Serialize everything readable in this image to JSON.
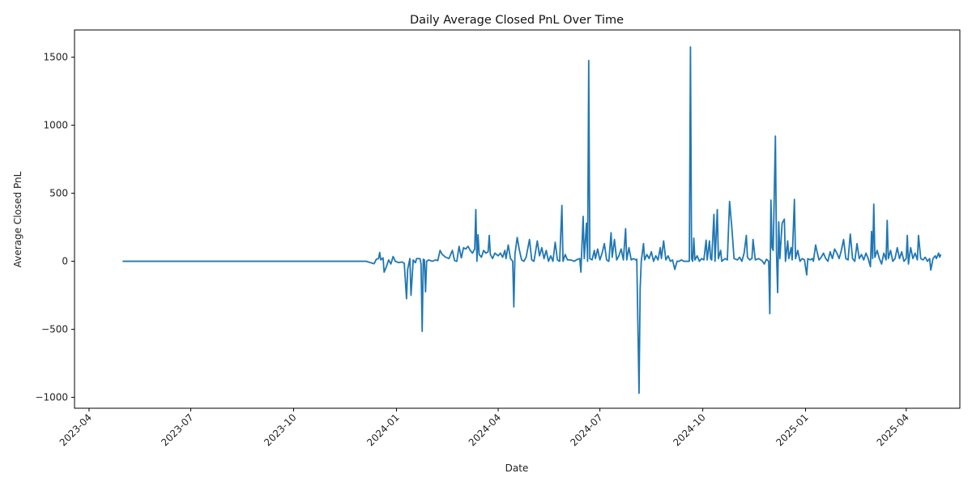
{
  "chart_data": {
    "type": "line",
    "title": "Daily Average Closed PnL Over Time",
    "xlabel": "Date",
    "ylabel": "Average Closed PnL",
    "ylim": [
      -1080,
      1700
    ],
    "xlim": [
      "2023-03-19",
      "2025-05-19"
    ],
    "grid": false,
    "color": "#1f77b4",
    "y_ticks": [
      -1000,
      -500,
      0,
      500,
      1000,
      1500
    ],
    "y_tick_labels": [
      "−1000",
      "−500",
      "0",
      "500",
      "1000",
      "1500"
    ],
    "x_ticks": [
      "2023-04-01",
      "2023-07-01",
      "2023-10-01",
      "2024-01-01",
      "2024-04-01",
      "2024-07-01",
      "2024-10-01",
      "2025-01-01",
      "2025-04-01"
    ],
    "x_tick_labels": [
      "2023-04",
      "2023-07",
      "2023-10",
      "2024-01",
      "2024-04",
      "2024-07",
      "2024-10",
      "2025-01",
      "2025-04"
    ],
    "series": [
      {
        "points": [
          [
            "2023-05-01",
            0
          ],
          [
            "2023-08-01",
            0
          ],
          [
            "2023-11-01",
            0
          ],
          [
            "2023-12-05",
            0
          ],
          [
            "2023-12-12",
            -18
          ],
          [
            "2023-12-14",
            15
          ],
          [
            "2023-12-16",
            20
          ],
          [
            "2023-12-17",
            65
          ],
          [
            "2023-12-18",
            10
          ],
          [
            "2023-12-20",
            25
          ],
          [
            "2023-12-21",
            -80
          ],
          [
            "2023-12-23",
            -40
          ],
          [
            "2023-12-25",
            10
          ],
          [
            "2023-12-27",
            -20
          ],
          [
            "2023-12-29",
            35
          ],
          [
            "2023-12-31",
            0
          ],
          [
            "2024-01-03",
            -10
          ],
          [
            "2024-01-06",
            -5
          ],
          [
            "2024-01-08",
            -15
          ],
          [
            "2024-01-10",
            -275
          ],
          [
            "2024-01-11",
            -60
          ],
          [
            "2024-01-13",
            20
          ],
          [
            "2024-01-14",
            -250
          ],
          [
            "2024-01-16",
            10
          ],
          [
            "2024-01-18",
            -10
          ],
          [
            "2024-01-19",
            20
          ],
          [
            "2024-01-22",
            20
          ],
          [
            "2024-01-23",
            -20
          ],
          [
            "2024-01-24",
            -515
          ],
          [
            "2024-01-25",
            15
          ],
          [
            "2024-01-26",
            10
          ],
          [
            "2024-01-27",
            -225
          ],
          [
            "2024-01-28",
            0
          ],
          [
            "2024-01-30",
            10
          ],
          [
            "2024-02-02",
            0
          ],
          [
            "2024-02-05",
            10
          ],
          [
            "2024-02-07",
            5
          ],
          [
            "2024-02-09",
            80
          ],
          [
            "2024-02-11",
            50
          ],
          [
            "2024-02-14",
            30
          ],
          [
            "2024-02-17",
            20
          ],
          [
            "2024-02-20",
            80
          ],
          [
            "2024-02-22",
            5
          ],
          [
            "2024-02-24",
            0
          ],
          [
            "2024-02-26",
            110
          ],
          [
            "2024-02-28",
            25
          ],
          [
            "2024-03-01",
            100
          ],
          [
            "2024-03-03",
            90
          ],
          [
            "2024-03-05",
            110
          ],
          [
            "2024-03-07",
            80
          ],
          [
            "2024-03-09",
            60
          ],
          [
            "2024-03-11",
            90
          ],
          [
            "2024-03-12",
            380
          ],
          [
            "2024-03-13",
            0
          ],
          [
            "2024-03-14",
            195
          ],
          [
            "2024-03-15",
            50
          ],
          [
            "2024-03-17",
            30
          ],
          [
            "2024-03-19",
            80
          ],
          [
            "2024-03-21",
            60
          ],
          [
            "2024-03-23",
            70
          ],
          [
            "2024-03-24",
            190
          ],
          [
            "2024-03-25",
            50
          ],
          [
            "2024-03-27",
            20
          ],
          [
            "2024-03-29",
            60
          ],
          [
            "2024-04-01",
            40
          ],
          [
            "2024-04-03",
            60
          ],
          [
            "2024-04-05",
            30
          ],
          [
            "2024-04-07",
            80
          ],
          [
            "2024-04-08",
            20
          ],
          [
            "2024-04-10",
            120
          ],
          [
            "2024-04-12",
            20
          ],
          [
            "2024-04-14",
            0
          ],
          [
            "2024-04-15",
            -335
          ],
          [
            "2024-04-16",
            50
          ],
          [
            "2024-04-18",
            175
          ],
          [
            "2024-04-20",
            80
          ],
          [
            "2024-04-22",
            10
          ],
          [
            "2024-04-24",
            0
          ],
          [
            "2024-04-26",
            30
          ],
          [
            "2024-04-29",
            160
          ],
          [
            "2024-05-01",
            10
          ],
          [
            "2024-05-03",
            0
          ],
          [
            "2024-05-06",
            150
          ],
          [
            "2024-05-08",
            40
          ],
          [
            "2024-05-10",
            100
          ],
          [
            "2024-05-12",
            20
          ],
          [
            "2024-05-14",
            80
          ],
          [
            "2024-05-16",
            0
          ],
          [
            "2024-05-18",
            40
          ],
          [
            "2024-05-20",
            0
          ],
          [
            "2024-05-22",
            140
          ],
          [
            "2024-05-24",
            10
          ],
          [
            "2024-05-26",
            0
          ],
          [
            "2024-05-28",
            410
          ],
          [
            "2024-05-29",
            0
          ],
          [
            "2024-05-31",
            50
          ],
          [
            "2024-06-02",
            10
          ],
          [
            "2024-06-05",
            10
          ],
          [
            "2024-06-08",
            0
          ],
          [
            "2024-06-11",
            15
          ],
          [
            "2024-06-13",
            20
          ],
          [
            "2024-06-14",
            -80
          ],
          [
            "2024-06-16",
            330
          ],
          [
            "2024-06-17",
            20
          ],
          [
            "2024-06-19",
            280
          ],
          [
            "2024-06-20",
            0
          ],
          [
            "2024-06-21",
            1475
          ],
          [
            "2024-06-22",
            20
          ],
          [
            "2024-06-24",
            10
          ],
          [
            "2024-06-26",
            80
          ],
          [
            "2024-06-27",
            20
          ],
          [
            "2024-06-29",
            90
          ],
          [
            "2024-07-01",
            10
          ],
          [
            "2024-07-03",
            60
          ],
          [
            "2024-07-05",
            130
          ],
          [
            "2024-07-07",
            10
          ],
          [
            "2024-07-09",
            0
          ],
          [
            "2024-07-11",
            210
          ],
          [
            "2024-07-12",
            30
          ],
          [
            "2024-07-14",
            160
          ],
          [
            "2024-07-16",
            10
          ],
          [
            "2024-07-18",
            40
          ],
          [
            "2024-07-20",
            90
          ],
          [
            "2024-07-22",
            10
          ],
          [
            "2024-07-24",
            240
          ],
          [
            "2024-07-25",
            10
          ],
          [
            "2024-07-27",
            100
          ],
          [
            "2024-07-29",
            10
          ],
          [
            "2024-07-31",
            20
          ],
          [
            "2024-08-02",
            10
          ],
          [
            "2024-08-03",
            15
          ],
          [
            "2024-08-05",
            -970
          ],
          [
            "2024-08-06",
            -200
          ],
          [
            "2024-08-07",
            0
          ],
          [
            "2024-08-09",
            130
          ],
          [
            "2024-08-10",
            10
          ],
          [
            "2024-08-12",
            50
          ],
          [
            "2024-08-14",
            20
          ],
          [
            "2024-08-16",
            70
          ],
          [
            "2024-08-18",
            0
          ],
          [
            "2024-08-20",
            40
          ],
          [
            "2024-08-22",
            10
          ],
          [
            "2024-08-24",
            100
          ],
          [
            "2024-08-25",
            20
          ],
          [
            "2024-08-27",
            150
          ],
          [
            "2024-08-29",
            10
          ],
          [
            "2024-08-31",
            40
          ],
          [
            "2024-09-02",
            0
          ],
          [
            "2024-09-04",
            10
          ],
          [
            "2024-09-06",
            -60
          ],
          [
            "2024-09-08",
            0
          ],
          [
            "2024-09-10",
            0
          ],
          [
            "2024-09-12",
            10
          ],
          [
            "2024-09-14",
            0
          ],
          [
            "2024-09-16",
            0
          ],
          [
            "2024-09-19",
            0
          ],
          [
            "2024-09-20",
            1575
          ],
          [
            "2024-09-21",
            20
          ],
          [
            "2024-09-22",
            0
          ],
          [
            "2024-09-23",
            170
          ],
          [
            "2024-09-24",
            10
          ],
          [
            "2024-09-26",
            40
          ],
          [
            "2024-09-28",
            0
          ],
          [
            "2024-09-30",
            20
          ],
          [
            "2024-10-02",
            10
          ],
          [
            "2024-10-04",
            155
          ],
          [
            "2024-10-05",
            10
          ],
          [
            "2024-10-07",
            150
          ],
          [
            "2024-10-08",
            20
          ],
          [
            "2024-10-09",
            10
          ],
          [
            "2024-10-11",
            345
          ],
          [
            "2024-10-12",
            0
          ],
          [
            "2024-10-14",
            380
          ],
          [
            "2024-10-15",
            20
          ],
          [
            "2024-10-17",
            80
          ],
          [
            "2024-10-18",
            0
          ],
          [
            "2024-10-21",
            20
          ],
          [
            "2024-10-23",
            10
          ],
          [
            "2024-10-25",
            440
          ],
          [
            "2024-10-27",
            250
          ],
          [
            "2024-10-29",
            20
          ],
          [
            "2024-11-01",
            10
          ],
          [
            "2024-11-03",
            30
          ],
          [
            "2024-11-05",
            0
          ],
          [
            "2024-11-07",
            60
          ],
          [
            "2024-11-09",
            190
          ],
          [
            "2024-11-10",
            30
          ],
          [
            "2024-11-12",
            10
          ],
          [
            "2024-11-14",
            20
          ],
          [
            "2024-11-15",
            160
          ],
          [
            "2024-11-17",
            10
          ],
          [
            "2024-11-20",
            20
          ],
          [
            "2024-11-23",
            5
          ],
          [
            "2024-11-25",
            -20
          ],
          [
            "2024-11-27",
            15
          ],
          [
            "2024-11-29",
            0
          ],
          [
            "2024-11-30",
            -385
          ],
          [
            "2024-12-01",
            450
          ],
          [
            "2024-12-02",
            100
          ],
          [
            "2024-12-03",
            80
          ],
          [
            "2024-12-05",
            920
          ],
          [
            "2024-12-06",
            60
          ],
          [
            "2024-12-07",
            -230
          ],
          [
            "2024-12-08",
            290
          ],
          [
            "2024-12-09",
            20
          ],
          [
            "2024-12-11",
            280
          ],
          [
            "2024-12-13",
            310
          ],
          [
            "2024-12-14",
            0
          ],
          [
            "2024-12-16",
            150
          ],
          [
            "2024-12-17",
            20
          ],
          [
            "2024-12-19",
            100
          ],
          [
            "2024-12-20",
            10
          ],
          [
            "2024-12-22",
            455
          ],
          [
            "2024-12-23",
            20
          ],
          [
            "2024-12-25",
            80
          ],
          [
            "2024-12-27",
            0
          ],
          [
            "2024-12-29",
            20
          ],
          [
            "2024-12-31",
            10
          ],
          [
            "2025-01-02",
            -100
          ],
          [
            "2025-01-03",
            20
          ],
          [
            "2025-01-05",
            10
          ],
          [
            "2025-01-07",
            20
          ],
          [
            "2025-01-08",
            0
          ],
          [
            "2025-01-10",
            120
          ],
          [
            "2025-01-11",
            80
          ],
          [
            "2025-01-13",
            10
          ],
          [
            "2025-01-15",
            30
          ],
          [
            "2025-01-17",
            60
          ],
          [
            "2025-01-19",
            20
          ],
          [
            "2025-01-21",
            0
          ],
          [
            "2025-01-23",
            70
          ],
          [
            "2025-01-25",
            20
          ],
          [
            "2025-01-27",
            90
          ],
          [
            "2025-01-29",
            60
          ],
          [
            "2025-01-31",
            20
          ],
          [
            "2025-02-02",
            80
          ],
          [
            "2025-02-04",
            160
          ],
          [
            "2025-02-06",
            20
          ],
          [
            "2025-02-08",
            10
          ],
          [
            "2025-02-10",
            200
          ],
          [
            "2025-02-12",
            20
          ],
          [
            "2025-02-14",
            0
          ],
          [
            "2025-02-16",
            130
          ],
          [
            "2025-02-18",
            20
          ],
          [
            "2025-02-20",
            50
          ],
          [
            "2025-02-22",
            10
          ],
          [
            "2025-02-24",
            60
          ],
          [
            "2025-02-26",
            20
          ],
          [
            "2025-02-28",
            -40
          ],
          [
            "2025-03-01",
            220
          ],
          [
            "2025-03-02",
            20
          ],
          [
            "2025-03-03",
            420
          ],
          [
            "2025-03-04",
            30
          ],
          [
            "2025-03-06",
            80
          ],
          [
            "2025-03-08",
            20
          ],
          [
            "2025-03-10",
            -20
          ],
          [
            "2025-03-12",
            60
          ],
          [
            "2025-03-14",
            10
          ],
          [
            "2025-03-15",
            300
          ],
          [
            "2025-03-16",
            20
          ],
          [
            "2025-03-18",
            80
          ],
          [
            "2025-03-20",
            0
          ],
          [
            "2025-03-22",
            20
          ],
          [
            "2025-03-24",
            100
          ],
          [
            "2025-03-26",
            20
          ],
          [
            "2025-03-28",
            70
          ],
          [
            "2025-03-30",
            0
          ],
          [
            "2025-04-01",
            20
          ],
          [
            "2025-04-02",
            190
          ],
          [
            "2025-04-03",
            -20
          ],
          [
            "2025-04-05",
            100
          ],
          [
            "2025-04-07",
            20
          ],
          [
            "2025-04-09",
            60
          ],
          [
            "2025-04-11",
            10
          ],
          [
            "2025-04-12",
            190
          ],
          [
            "2025-04-14",
            20
          ],
          [
            "2025-04-16",
            10
          ],
          [
            "2025-04-18",
            30
          ],
          [
            "2025-04-20",
            0
          ],
          [
            "2025-04-22",
            20
          ],
          [
            "2025-04-23",
            -65
          ],
          [
            "2025-04-25",
            20
          ],
          [
            "2025-04-27",
            40
          ],
          [
            "2025-04-28",
            20
          ],
          [
            "2025-04-30",
            60
          ],
          [
            "2025-05-01",
            30
          ],
          [
            "2025-05-02",
            50
          ]
        ]
      }
    ]
  }
}
